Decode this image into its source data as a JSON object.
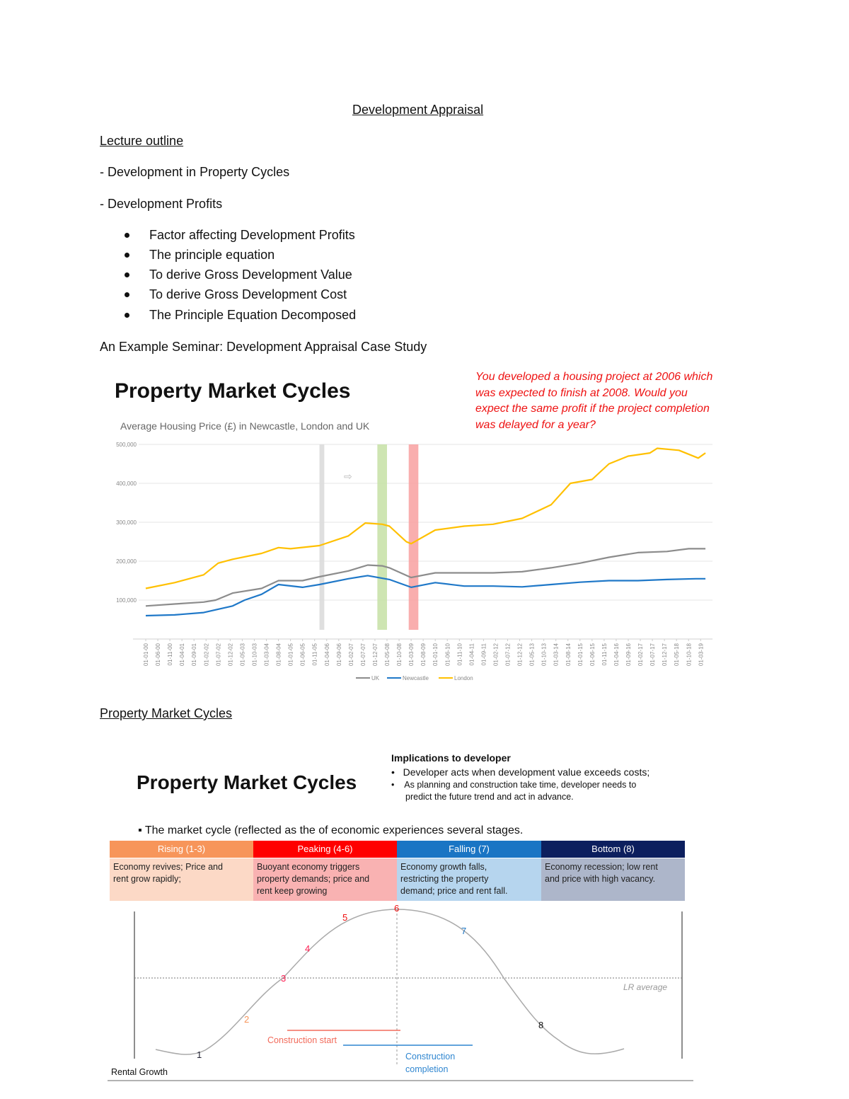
{
  "document": {
    "title": "Development Appraisal",
    "outline_heading": "Lecture outline",
    "outline_items": [
      "- Development in Property Cycles",
      "- Development Profits"
    ],
    "profit_bullets": [
      "Factor affecting Development Profits",
      "The principle equation",
      "To derive Gross Development Value",
      "To derive Gross Development Cost",
      "The Principle Equation Decomposed"
    ],
    "seminar_line": "An Example Seminar: Development Appraisal Case Study",
    "section2_heading": "Property Market Cycles"
  },
  "slide1": {
    "title": "Property Market Cycles",
    "question": [
      "You developed a housing project at 2006 which",
      "was expected to finish at 2008. Would you",
      "expect the same profit if the project completion",
      "was delayed for a year?"
    ]
  },
  "chart_data": {
    "type": "line",
    "title": "Average Housing Price (£) in Newcastle, London and UK",
    "xlabel": "",
    "ylabel": "",
    "ylim": [
      0,
      500000
    ],
    "yticks": [
      "100,000",
      "200,000",
      "300,000",
      "400,000",
      "500,000"
    ],
    "ytick_values": [
      100000,
      200000,
      300000,
      400000,
      500000
    ],
    "xlim": [
      "2000-01",
      "2019-05"
    ],
    "xticks": [
      "01-01-00",
      "01-06-00",
      "01-11-00",
      "01-04-01",
      "01-09-01",
      "01-02-02",
      "01-07-02",
      "01-12-02",
      "01-05-03",
      "01-10-03",
      "01-03-04",
      "01-08-04",
      "01-01-05",
      "01-06-05",
      "01-11-05",
      "01-04-06",
      "01-09-06",
      "01-02-07",
      "01-07-07",
      "01-12-07",
      "01-05-08",
      "01-10-08",
      "01-03-09",
      "01-08-09",
      "01-01-10",
      "01-06-10",
      "01-11-10",
      "01-04-11",
      "01-09-11",
      "01-02-12",
      "01-07-12",
      "01-12-12",
      "01-05-13",
      "01-10-13",
      "01-03-14",
      "01-08-14",
      "01-01-15",
      "01-06-15",
      "01-11-15",
      "01-04-16",
      "01-09-16",
      "01-02-17",
      "01-07-17",
      "01-12-17",
      "01-05-18",
      "01-10-18",
      "01-03-19"
    ],
    "grid": true,
    "legend": "bottom",
    "series": [
      {
        "name": "UK",
        "color": "#8c8c8c",
        "x": [
          "2000-01",
          "2001-01",
          "2002-01",
          "2002-06",
          "2003-01",
          "2004-01",
          "2004-08",
          "2005-06",
          "2006-01",
          "2007-01",
          "2007-09",
          "2008-03",
          "2008-06",
          "2009-03",
          "2010-01",
          "2011-01",
          "2012-01",
          "2013-01",
          "2014-01",
          "2015-01",
          "2016-01",
          "2017-01",
          "2018-01",
          "2018-10",
          "2019-05"
        ],
        "y": [
          85000,
          90000,
          95000,
          100000,
          118000,
          130000,
          150000,
          150000,
          160000,
          175000,
          190000,
          188000,
          183000,
          158000,
          170000,
          170000,
          170000,
          173000,
          183000,
          195000,
          210000,
          222000,
          225000,
          232000,
          232000
        ]
      },
      {
        "name": "Newcastle",
        "color": "#1f78c8",
        "x": [
          "2000-01",
          "2001-01",
          "2002-01",
          "2003-01",
          "2003-06",
          "2004-01",
          "2004-08",
          "2005-06",
          "2006-01",
          "2007-01",
          "2007-09",
          "2008-06",
          "2009-03",
          "2010-01",
          "2011-01",
          "2012-01",
          "2013-01",
          "2014-01",
          "2015-01",
          "2016-01",
          "2017-01",
          "2018-01",
          "2019-01",
          "2019-05"
        ],
        "y": [
          60000,
          62000,
          68000,
          85000,
          100000,
          115000,
          140000,
          133000,
          140000,
          155000,
          163000,
          153000,
          133000,
          145000,
          136000,
          136000,
          134000,
          140000,
          146000,
          150000,
          150000,
          153000,
          155000,
          155000
        ]
      },
      {
        "name": "London",
        "color": "#ffc000",
        "x": [
          "2000-01",
          "2001-01",
          "2002-01",
          "2002-07",
          "2003-01",
          "2004-01",
          "2004-08",
          "2005-01",
          "2006-01",
          "2007-01",
          "2007-08",
          "2008-03",
          "2008-06",
          "2009-01",
          "2009-03",
          "2010-01",
          "2011-01",
          "2012-01",
          "2013-01",
          "2014-01",
          "2014-09",
          "2015-06",
          "2016-01",
          "2016-09",
          "2017-06",
          "2017-09",
          "2018-06",
          "2019-02",
          "2019-05"
        ],
        "y": [
          130000,
          145000,
          165000,
          195000,
          205000,
          220000,
          235000,
          232000,
          240000,
          265000,
          298000,
          295000,
          290000,
          250000,
          245000,
          280000,
          290000,
          295000,
          310000,
          345000,
          400000,
          410000,
          450000,
          470000,
          478000,
          490000,
          485000,
          465000,
          478000
        ]
      }
    ],
    "bands": [
      {
        "from": "2006-01",
        "to": "2006-03",
        "color": "#d9d9d9"
      },
      {
        "from": "2008-01",
        "to": "2008-05",
        "color": "#c5e0a5"
      },
      {
        "from": "2009-02",
        "to": "2009-06",
        "color": "#f8a0a0"
      }
    ],
    "annotation_icon": "right-arrow-icon"
  },
  "slide2": {
    "title": "Property Market Cycles",
    "implications_heading": "Implications to developer",
    "implications": [
      "Developer acts when development value exceeds costs;",
      "As planning and construction take time, developer needs to",
      "predict the future trend and act in advance."
    ],
    "intro": "The market cycle (reflected as the of economic experiences several stages.",
    "stages": [
      {
        "label": "Rising (1-3)",
        "desc": [
          "Economy revives; Price and",
          "rent grow rapidly;"
        ],
        "header_color": "#f7955a",
        "body_color": "#fcd9c6"
      },
      {
        "label": "Peaking (4-6)",
        "desc": [
          "Buoyant economy triggers",
          "property demands; price and",
          "rent keep growing"
        ],
        "header_color": "#ff0000",
        "body_color": "#f9b2b2"
      },
      {
        "label": "Falling (7)",
        "desc": [
          "Economy growth falls,",
          "restricting the property",
          "demand; price and rent fall."
        ],
        "header_color": "#1a75c4",
        "body_color": "#b6d5ee"
      },
      {
        "label": "Bottom (8)",
        "desc": [
          "Economy recession; low rent",
          "and price with high vacancy."
        ],
        "header_color": "#0c1f5e",
        "body_color": "#adb6ca"
      }
    ],
    "points": [
      "1",
      "2",
      "3",
      "4",
      "5",
      "6",
      "7",
      "8"
    ],
    "lr_average": "LR average",
    "construction_start": "Construction start",
    "construction_completion": [
      "Construction",
      "completion"
    ],
    "y_label": "Rental Growth"
  }
}
